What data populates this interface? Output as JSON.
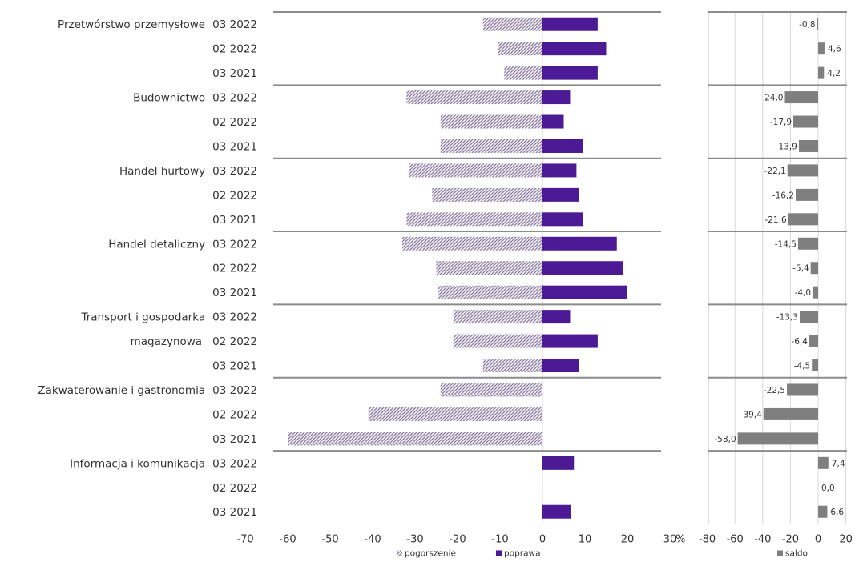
{
  "colors": {
    "poprawa": "#4b1a94",
    "pogorszenie": "#8d7ba8",
    "saldo": "#7f7f7f",
    "separator": "#8c8c8c",
    "grid": "#d9d9d9",
    "text": "#333333"
  },
  "units": {
    "percent": "%"
  },
  "chart_data": [
    {
      "type": "bar",
      "orientation": "horizontal",
      "stacked": true,
      "title": "",
      "xlabel": "",
      "ylabel": "",
      "xlim": [
        -70,
        30
      ],
      "x_ticks": [
        "-70",
        "-60",
        "-50",
        "-40",
        "-30",
        "-20",
        "-10",
        "0",
        "10",
        "20",
        "30"
      ],
      "unit": "%",
      "legend": [
        "pogorszenie",
        "poprawa"
      ],
      "legend_position": "bottom",
      "groups": [
        {
          "label": [
            "Przetwórstwo przemysłowe"
          ],
          "periods": [
            "03 2022",
            "02 2022",
            "03 2021"
          ]
        },
        {
          "label": [
            "Budownictwo"
          ],
          "periods": [
            "03 2022",
            "02 2022",
            "03 2021"
          ]
        },
        {
          "label": [
            "Handel hurtowy"
          ],
          "periods": [
            "03 2022",
            "02 2022",
            "03 2021"
          ]
        },
        {
          "label": [
            "Handel detaliczny"
          ],
          "periods": [
            "03 2022",
            "02 2022",
            "03 2021"
          ]
        },
        {
          "label": [
            "Transport i gospodarka",
            "magazynowa"
          ],
          "periods": [
            "03 2022",
            "02 2022",
            "03 2021"
          ]
        },
        {
          "label": [
            "Zakwaterowanie i gastronomia"
          ],
          "periods": [
            "03 2022",
            "02 2022",
            "03 2021"
          ]
        },
        {
          "label": [
            "Informacja i komunikacja"
          ],
          "periods": [
            "03 2022",
            "02 2022",
            "03 2021"
          ]
        }
      ],
      "series": [
        {
          "name": "pogorszenie",
          "values": [
            -14,
            -10.5,
            -9,
            -32,
            -24,
            -24,
            -31.5,
            -26,
            -32,
            -33,
            -25,
            -24.5,
            -21,
            -21,
            -14,
            -24,
            -41,
            -60,
            0,
            0,
            0
          ]
        },
        {
          "name": "poprawa",
          "values": [
            13,
            15,
            13,
            6.5,
            5,
            9.5,
            8,
            8.5,
            9.5,
            17.5,
            19,
            20,
            6.5,
            13,
            8.5,
            0,
            0,
            0,
            7.4,
            0,
            6.6
          ]
        }
      ]
    },
    {
      "type": "bar",
      "orientation": "horizontal",
      "title": "",
      "xlim": [
        -80,
        20
      ],
      "x_ticks": [
        "-80",
        "-60",
        "-40",
        "-20",
        "0",
        "20"
      ],
      "legend": [
        "saldo"
      ],
      "legend_position": "bottom",
      "series": [
        {
          "name": "saldo",
          "values": [
            -0.8,
            4.6,
            4.2,
            -24.0,
            -17.9,
            -13.9,
            -22.1,
            -16.2,
            -21.6,
            -14.5,
            -5.4,
            -4.0,
            -13.3,
            -6.4,
            -4.5,
            -22.5,
            -39.4,
            -58.0,
            7.4,
            0.0,
            6.6
          ]
        }
      ],
      "data_labels": [
        "-0,8",
        "4,6",
        "4,2",
        "-24,0",
        "-17,9",
        "-13,9",
        "-22,1",
        "-16,2",
        "-21,6",
        "-14,5",
        "-5,4",
        "-4,0",
        "-13,3",
        "-6,4",
        "-4,5",
        "-22,5",
        "-39,4",
        "-58,0",
        "7,4",
        "0,0",
        "6,6"
      ]
    }
  ]
}
